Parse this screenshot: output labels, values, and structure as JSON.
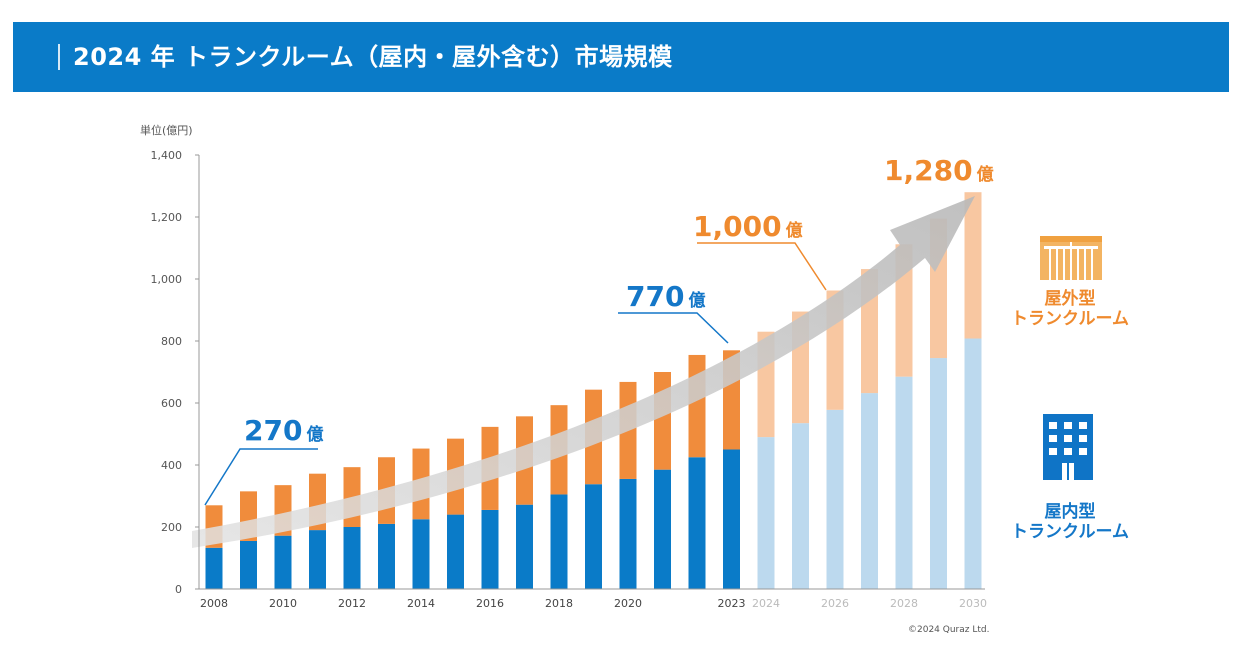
{
  "banner": {
    "title": "2024 年 トランクルーム（屋内・屋外含む）市場規模"
  },
  "chart_data": {
    "type": "bar",
    "stacked": true,
    "unit_label": "単位(億円)",
    "ylim": [
      0,
      1400
    ],
    "yticks": [
      0,
      200,
      400,
      600,
      800,
      1000,
      1200,
      1400
    ],
    "ytick_labels": [
      "0",
      "200",
      "400",
      "600",
      "800",
      "1,000",
      "1,200",
      "1,400"
    ],
    "categories": [
      "2008",
      "2009",
      "2010",
      "2011",
      "2012",
      "2013",
      "2014",
      "2015",
      "2016",
      "2017",
      "2018",
      "2019",
      "2020",
      "2021",
      "2022",
      "2023",
      "2024",
      "2025",
      "2026",
      "2027",
      "2028",
      "2029",
      "2030"
    ],
    "x_tick_labels": [
      "2008",
      "",
      "2010",
      "",
      "2012",
      "",
      "2014",
      "",
      "2016",
      "",
      "2018",
      "",
      "2020",
      "",
      "",
      "2023",
      "2024",
      "",
      "2026",
      "",
      "2028",
      "",
      "2030"
    ],
    "series": [
      {
        "name": "屋内型トランクルーム",
        "color": "#0a7bc8",
        "forecast_color": "#bcd9ee",
        "values": [
          133,
          155,
          172,
          190,
          200,
          210,
          225,
          240,
          255,
          272,
          305,
          338,
          355,
          385,
          425,
          450,
          490,
          535,
          578,
          632,
          685,
          745,
          808
        ]
      },
      {
        "name": "屋外型トランクルーム",
        "color": "#f08c3c",
        "forecast_color": "#f8c7a1",
        "values": [
          137,
          160,
          163,
          182,
          193,
          215,
          228,
          245,
          268,
          285,
          288,
          305,
          313,
          315,
          330,
          320,
          340,
          360,
          385,
          400,
          427,
          450,
          472
        ]
      }
    ],
    "forecast_start_index": 16,
    "annotations": [
      {
        "text": "270",
        "suffix": "億",
        "color": "#1477c8"
      },
      {
        "text": "770",
        "suffix": "億",
        "color": "#1477c8"
      },
      {
        "text": "1,000",
        "suffix": "億",
        "color": "#ef8a2e"
      },
      {
        "text": "1,280",
        "suffix": "億",
        "color": "#ef8a2e"
      }
    ],
    "grid": false,
    "trend_arrow": true
  },
  "copyright": "©2024 Quraz Ltd.",
  "legend": {
    "outdoor": {
      "label": "屋外型\nトランクルーム",
      "icon": "outdoor-container-icon",
      "color": "#ef8a2e"
    },
    "indoor": {
      "label": "屋内型\nトランクルーム",
      "icon": "building-icon",
      "color": "#1477c8"
    }
  }
}
